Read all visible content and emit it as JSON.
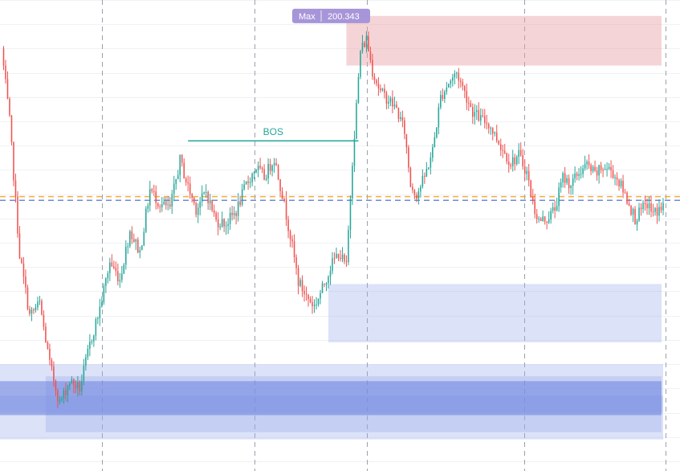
{
  "chart_data": {
    "type": "candlestick",
    "title": "",
    "xlabel": "",
    "ylabel": "",
    "ylim": [
      181.6,
      201.0
    ],
    "grid": true,
    "annotations": {
      "bos": {
        "label": "BOS",
        "price": 195.2
      },
      "max": {
        "label": "Max",
        "value": "200.343",
        "price": 200.343
      }
    },
    "reference_lines": [
      {
        "name": "orange-dashed",
        "price": 192.9,
        "color": "#f5a623"
      },
      {
        "name": "blue-dashed",
        "price": 192.75,
        "color": "#5b7fd6"
      }
    ],
    "zones": [
      {
        "kind": "supply",
        "top": 200.343,
        "bottom": 198.3,
        "color": "#e8a0a6"
      },
      {
        "kind": "demand",
        "top": 189.3,
        "bottom": 186.9,
        "color": "#9aaceb"
      },
      {
        "kind": "demand",
        "top": 186.0,
        "bottom": 182.9,
        "color": "#9aaceb"
      },
      {
        "kind": "demand",
        "top": 185.5,
        "bottom": 183.2,
        "color": "#9aaceb"
      },
      {
        "kind": "demand",
        "top": 184.7,
        "bottom": 184.0,
        "color": "#9aaceb"
      },
      {
        "kind": "demand",
        "top": 185.3,
        "bottom": 183.9,
        "color": "#6b82df"
      }
    ],
    "anchors": [
      [
        0,
        199.0
      ],
      [
        4,
        196.0
      ],
      [
        9,
        190.5
      ],
      [
        14,
        188.0
      ],
      [
        19,
        188.5
      ],
      [
        24,
        186.0
      ],
      [
        29,
        184.4
      ],
      [
        34,
        185.3
      ],
      [
        39,
        185.0
      ],
      [
        44,
        186.8
      ],
      [
        49,
        188.3
      ],
      [
        54,
        190.2
      ],
      [
        59,
        189.5
      ],
      [
        64,
        191.5
      ],
      [
        69,
        190.6
      ],
      [
        74,
        193.2
      ],
      [
        79,
        192.6
      ],
      [
        84,
        192.4
      ],
      [
        89,
        194.4
      ],
      [
        93,
        193.3
      ],
      [
        97,
        192.4
      ],
      [
        102,
        193.1
      ],
      [
        107,
        191.9
      ],
      [
        112,
        191.8
      ],
      [
        117,
        192.3
      ],
      [
        122,
        193.4
      ],
      [
        127,
        194.1
      ],
      [
        131,
        193.7
      ],
      [
        136,
        194.5
      ],
      [
        140,
        193.0
      ],
      [
        144,
        191.3
      ],
      [
        148,
        189.4
      ],
      [
        152,
        188.8
      ],
      [
        156,
        188.4
      ],
      [
        160,
        189.1
      ],
      [
        164,
        190.0
      ],
      [
        168,
        190.6
      ],
      [
        172,
        190.0
      ],
      [
        175,
        194.4
      ],
      [
        179,
        198.9
      ],
      [
        182,
        199.4
      ],
      [
        185,
        198.1
      ],
      [
        189,
        197.2
      ],
      [
        193,
        196.9
      ],
      [
        197,
        196.5
      ],
      [
        201,
        195.6
      ],
      [
        204,
        193.4
      ],
      [
        207,
        193.0
      ],
      [
        211,
        193.7
      ],
      [
        215,
        194.8
      ],
      [
        219,
        197.0
      ],
      [
        223,
        197.6
      ],
      [
        227,
        198.0
      ],
      [
        231,
        197.2
      ],
      [
        235,
        196.4
      ],
      [
        239,
        196.1
      ],
      [
        243,
        195.9
      ],
      [
        247,
        195.3
      ],
      [
        251,
        194.7
      ],
      [
        254,
        194.3
      ],
      [
        258,
        194.6
      ],
      [
        262,
        193.9
      ],
      [
        265,
        192.6
      ],
      [
        268,
        191.9
      ],
      [
        272,
        192.0
      ],
      [
        276,
        192.4
      ],
      [
        280,
        193.7
      ],
      [
        284,
        193.4
      ],
      [
        288,
        193.9
      ],
      [
        292,
        194.2
      ],
      [
        296,
        193.8
      ],
      [
        300,
        194.1
      ],
      [
        304,
        194.0
      ],
      [
        308,
        193.5
      ],
      [
        312,
        192.8
      ],
      [
        316,
        192.0
      ],
      [
        319,
        192.3
      ],
      [
        322,
        192.6
      ],
      [
        325,
        192.2
      ],
      [
        330,
        192.5
      ]
    ],
    "x_range": [
      0,
      330
    ],
    "colors": {
      "up": "#26a69a",
      "down": "#ef5350"
    }
  }
}
